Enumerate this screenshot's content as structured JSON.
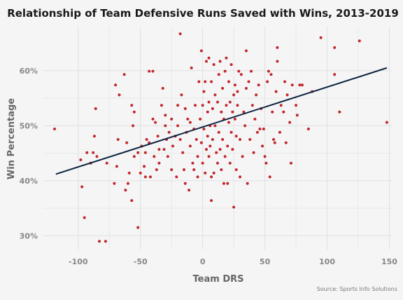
{
  "chart_data": {
    "type": "scatter",
    "title": "Relationship of Team Defensive Runs Saved with Wins, 2013-2019",
    "xlabel": "Team DRS",
    "ylabel": "Win Percentage",
    "caption": "Source: Sports Info Solutions",
    "xlim": [
      -128,
      152
    ],
    "ylim": [
      0.275,
      0.68
    ],
    "xticks": [
      -100,
      -50,
      0,
      50,
      100,
      150
    ],
    "xtick_labels": [
      "-100",
      "-50",
      "0",
      "50",
      "100",
      "150"
    ],
    "yticks": [
      0.3,
      0.4,
      0.5,
      0.6
    ],
    "ytick_labels": [
      "30%",
      "40%",
      "50%",
      "60%"
    ],
    "grid": true,
    "colors": {
      "point": "#c1272d",
      "trend": "#0c2340",
      "background": "#f5f5f5"
    },
    "trend_line": {
      "x": [
        -118,
        148
      ],
      "y": [
        0.412,
        0.605
      ]
    },
    "points": [
      {
        "x": -119,
        "y": 0.494
      },
      {
        "x": -98,
        "y": 0.438
      },
      {
        "x": -97,
        "y": 0.389
      },
      {
        "x": -95,
        "y": 0.333
      },
      {
        "x": -93,
        "y": 0.451
      },
      {
        "x": -90,
        "y": 0.432
      },
      {
        "x": -88,
        "y": 0.451
      },
      {
        "x": -87,
        "y": 0.481
      },
      {
        "x": -86,
        "y": 0.531
      },
      {
        "x": -85,
        "y": 0.444
      },
      {
        "x": -83,
        "y": 0.29
      },
      {
        "x": -78,
        "y": 0.29
      },
      {
        "x": -77,
        "y": 0.432
      },
      {
        "x": -71,
        "y": 0.395
      },
      {
        "x": -70,
        "y": 0.574
      },
      {
        "x": -69,
        "y": 0.426
      },
      {
        "x": -68,
        "y": 0.475
      },
      {
        "x": -67,
        "y": 0.556
      },
      {
        "x": -63,
        "y": 0.593
      },
      {
        "x": -62,
        "y": 0.383
      },
      {
        "x": -61,
        "y": 0.469
      },
      {
        "x": -60,
        "y": 0.395
      },
      {
        "x": -59,
        "y": 0.414
      },
      {
        "x": -57,
        "y": 0.364
      },
      {
        "x": -57,
        "y": 0.537
      },
      {
        "x": -56,
        "y": 0.5
      },
      {
        "x": -55,
        "y": 0.525
      },
      {
        "x": -55,
        "y": 0.444
      },
      {
        "x": -52,
        "y": 0.451
      },
      {
        "x": -52,
        "y": 0.315
      },
      {
        "x": -50,
        "y": 0.414
      },
      {
        "x": -49,
        "y": 0.463
      },
      {
        "x": -47,
        "y": 0.426
      },
      {
        "x": -46,
        "y": 0.407
      },
      {
        "x": -46,
        "y": 0.451
      },
      {
        "x": -45,
        "y": 0.475
      },
      {
        "x": -43,
        "y": 0.599
      },
      {
        "x": -43,
        "y": 0.469
      },
      {
        "x": -42,
        "y": 0.407
      },
      {
        "x": -40,
        "y": 0.599
      },
      {
        "x": -40,
        "y": 0.512
      },
      {
        "x": -39,
        "y": 0.444
      },
      {
        "x": -38,
        "y": 0.506
      },
      {
        "x": -37,
        "y": 0.42
      },
      {
        "x": -36,
        "y": 0.481
      },
      {
        "x": -35,
        "y": 0.457
      },
      {
        "x": -35,
        "y": 0.432
      },
      {
        "x": -33,
        "y": 0.537
      },
      {
        "x": -32,
        "y": 0.568
      },
      {
        "x": -31,
        "y": 0.457
      },
      {
        "x": -30,
        "y": 0.519
      },
      {
        "x": -30,
        "y": 0.5
      },
      {
        "x": -29,
        "y": 0.475
      },
      {
        "x": -28,
        "y": 0.444
      },
      {
        "x": -27,
        "y": 0.488
      },
      {
        "x": -25,
        "y": 0.512
      },
      {
        "x": -25,
        "y": 0.42
      },
      {
        "x": -24,
        "y": 0.463
      },
      {
        "x": -22,
        "y": 0.481
      },
      {
        "x": -21,
        "y": 0.407
      },
      {
        "x": -20,
        "y": 0.537
      },
      {
        "x": -20,
        "y": 0.5
      },
      {
        "x": -18,
        "y": 0.667
      },
      {
        "x": -18,
        "y": 0.475
      },
      {
        "x": -17,
        "y": 0.556
      },
      {
        "x": -16,
        "y": 0.451
      },
      {
        "x": -15,
        "y": 0.42
      },
      {
        "x": -14,
        "y": 0.395
      },
      {
        "x": -14,
        "y": 0.531
      },
      {
        "x": -13,
        "y": 0.488
      },
      {
        "x": -12,
        "y": 0.512
      },
      {
        "x": -11,
        "y": 0.383
      },
      {
        "x": -10,
        "y": 0.506
      },
      {
        "x": -10,
        "y": 0.463
      },
      {
        "x": -9,
        "y": 0.605
      },
      {
        "x": -8,
        "y": 0.432
      },
      {
        "x": -7,
        "y": 0.494
      },
      {
        "x": -7,
        "y": 0.42
      },
      {
        "x": -6,
        "y": 0.537
      },
      {
        "x": -5,
        "y": 0.475
      },
      {
        "x": -4,
        "y": 0.407
      },
      {
        "x": -4,
        "y": 0.444
      },
      {
        "x": -3,
        "y": 0.58
      },
      {
        "x": -2,
        "y": 0.512
      },
      {
        "x": -1,
        "y": 0.636
      },
      {
        "x": -1,
        "y": 0.469
      },
      {
        "x": 0,
        "y": 0.537
      },
      {
        "x": 0,
        "y": 0.432
      },
      {
        "x": 1,
        "y": 0.494
      },
      {
        "x": 1,
        "y": 0.562
      },
      {
        "x": 2,
        "y": 0.58
      },
      {
        "x": 2,
        "y": 0.414
      },
      {
        "x": 3,
        "y": 0.617
      },
      {
        "x": 3,
        "y": 0.457
      },
      {
        "x": 4,
        "y": 0.525
      },
      {
        "x": 4,
        "y": 0.481
      },
      {
        "x": 5,
        "y": 0.623
      },
      {
        "x": 5,
        "y": 0.543
      },
      {
        "x": 5,
        "y": 0.444
      },
      {
        "x": 6,
        "y": 0.5
      },
      {
        "x": 6,
        "y": 0.463
      },
      {
        "x": 7,
        "y": 0.58
      },
      {
        "x": 7,
        "y": 0.407
      },
      {
        "x": 7,
        "y": 0.364
      },
      {
        "x": 8,
        "y": 0.531
      },
      {
        "x": 8,
        "y": 0.475
      },
      {
        "x": 9,
        "y": 0.611
      },
      {
        "x": 9,
        "y": 0.414
      },
      {
        "x": 10,
        "y": 0.556
      },
      {
        "x": 10,
        "y": 0.5
      },
      {
        "x": 11,
        "y": 0.451
      },
      {
        "x": 12,
        "y": 0.543
      },
      {
        "x": 12,
        "y": 0.432
      },
      {
        "x": 13,
        "y": 0.593
      },
      {
        "x": 13,
        "y": 0.488
      },
      {
        "x": 14,
        "y": 0.617
      },
      {
        "x": 14,
        "y": 0.457
      },
      {
        "x": 15,
        "y": 0.525
      },
      {
        "x": 15,
        "y": 0.42
      },
      {
        "x": 16,
        "y": 0.568
      },
      {
        "x": 16,
        "y": 0.475
      },
      {
        "x": 17,
        "y": 0.512
      },
      {
        "x": 17,
        "y": 0.395
      },
      {
        "x": 18,
        "y": 0.599
      },
      {
        "x": 18,
        "y": 0.444
      },
      {
        "x": 19,
        "y": 0.623
      },
      {
        "x": 19,
        "y": 0.537
      },
      {
        "x": 20,
        "y": 0.463
      },
      {
        "x": 20,
        "y": 0.395
      },
      {
        "x": 21,
        "y": 0.58
      },
      {
        "x": 21,
        "y": 0.506
      },
      {
        "x": 22,
        "y": 0.432
      },
      {
        "x": 22,
        "y": 0.543
      },
      {
        "x": 23,
        "y": 0.611
      },
      {
        "x": 23,
        "y": 0.488
      },
      {
        "x": 24,
        "y": 0.525
      },
      {
        "x": 24,
        "y": 0.457
      },
      {
        "x": 25,
        "y": 0.556
      },
      {
        "x": 25,
        "y": 0.352
      },
      {
        "x": 26,
        "y": 0.574
      },
      {
        "x": 26,
        "y": 0.512
      },
      {
        "x": 27,
        "y": 0.42
      },
      {
        "x": 27,
        "y": 0.481
      },
      {
        "x": 28,
        "y": 0.562
      },
      {
        "x": 28,
        "y": 0.537
      },
      {
        "x": 29,
        "y": 0.599
      },
      {
        "x": 30,
        "y": 0.475
      },
      {
        "x": 30,
        "y": 0.407
      },
      {
        "x": 31,
        "y": 0.593
      },
      {
        "x": 32,
        "y": 0.444
      },
      {
        "x": 33,
        "y": 0.525
      },
      {
        "x": 34,
        "y": 0.5
      },
      {
        "x": 35,
        "y": 0.636
      },
      {
        "x": 35,
        "y": 0.568
      },
      {
        "x": 36,
        "y": 0.395
      },
      {
        "x": 37,
        "y": 0.58
      },
      {
        "x": 38,
        "y": 0.475
      },
      {
        "x": 39,
        "y": 0.599
      },
      {
        "x": 40,
        "y": 0.537
      },
      {
        "x": 41,
        "y": 0.451
      },
      {
        "x": 42,
        "y": 0.512
      },
      {
        "x": 43,
        "y": 0.556
      },
      {
        "x": 44,
        "y": 0.488
      },
      {
        "x": 45,
        "y": 0.574
      },
      {
        "x": 46,
        "y": 0.494
      },
      {
        "x": 47,
        "y": 0.531
      },
      {
        "x": 48,
        "y": 0.463
      },
      {
        "x": 49,
        "y": 0.494
      },
      {
        "x": 50,
        "y": 0.444
      },
      {
        "x": 51,
        "y": 0.432
      },
      {
        "x": 52,
        "y": 0.58
      },
      {
        "x": 53,
        "y": 0.599
      },
      {
        "x": 54,
        "y": 0.407
      },
      {
        "x": 55,
        "y": 0.593
      },
      {
        "x": 56,
        "y": 0.525
      },
      {
        "x": 57,
        "y": 0.475
      },
      {
        "x": 58,
        "y": 0.469
      },
      {
        "x": 59,
        "y": 0.562
      },
      {
        "x": 60,
        "y": 0.617
      },
      {
        "x": 60,
        "y": 0.642
      },
      {
        "x": 62,
        "y": 0.488
      },
      {
        "x": 63,
        "y": 0.537
      },
      {
        "x": 65,
        "y": 0.525
      },
      {
        "x": 66,
        "y": 0.58
      },
      {
        "x": 67,
        "y": 0.469
      },
      {
        "x": 68,
        "y": 0.556
      },
      {
        "x": 70,
        "y": 0.506
      },
      {
        "x": 71,
        "y": 0.432
      },
      {
        "x": 72,
        "y": 0.574
      },
      {
        "x": 75,
        "y": 0.537
      },
      {
        "x": 76,
        "y": 0.519
      },
      {
        "x": 78,
        "y": 0.574
      },
      {
        "x": 80,
        "y": 0.574
      },
      {
        "x": 85,
        "y": 0.494
      },
      {
        "x": 88,
        "y": 0.562
      },
      {
        "x": 95,
        "y": 0.66
      },
      {
        "x": 106,
        "y": 0.642
      },
      {
        "x": 106,
        "y": 0.593
      },
      {
        "x": 110,
        "y": 0.525
      },
      {
        "x": 126,
        "y": 0.654
      },
      {
        "x": 148,
        "y": 0.506
      }
    ]
  }
}
